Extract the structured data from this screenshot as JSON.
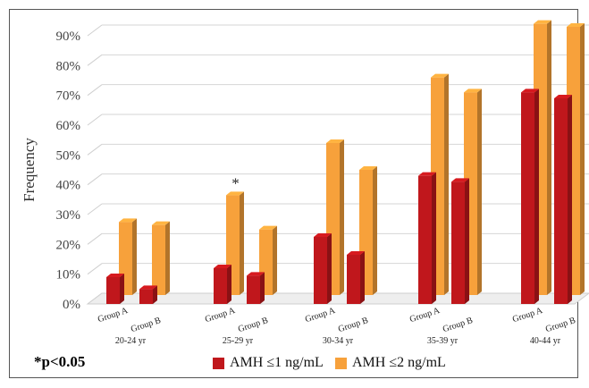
{
  "chart_data": {
    "type": "bar",
    "style": "3d-clustered",
    "ylabel": "Frequency",
    "yticks": [
      "0%",
      "10%",
      "20%",
      "30%",
      "40%",
      "50%",
      "60%",
      "70%",
      "80%",
      "90%"
    ],
    "ylim": [
      0,
      90
    ],
    "grid": true,
    "age_groups": [
      "20-24 yr",
      "25-29 yr",
      "30-34 yr",
      "35-39 yr",
      "40-44 yr"
    ],
    "subgroups": [
      "Group A",
      "Group B"
    ],
    "series": [
      {
        "name": "AMH ≤1 ng/mL",
        "color": "#C0171C",
        "values": [
          [
            9,
            5
          ],
          [
            12,
            9.5
          ],
          [
            22.5,
            16.5
          ],
          [
            43,
            41
          ],
          [
            71,
            69
          ]
        ]
      },
      {
        "name": "AMH ≤2 ng/mL",
        "color": "#F7A13B",
        "values": [
          [
            24.5,
            23.5
          ],
          [
            33.5,
            22
          ],
          [
            51,
            42
          ],
          [
            73,
            68
          ],
          [
            91,
            90
          ]
        ]
      }
    ],
    "annotations": [
      {
        "text": "*",
        "age_group": "25-29 yr",
        "subgroup": "Group A",
        "series": "AMH ≤2 ng/mL"
      }
    ],
    "legend": {
      "placement": "bottom"
    },
    "footnote": "*p<0.05"
  }
}
